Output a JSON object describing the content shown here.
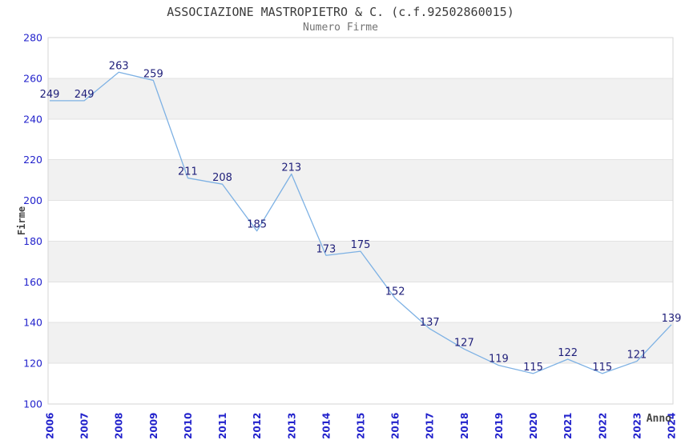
{
  "chart_data": {
    "type": "line",
    "title": "ASSOCIAZIONE MASTROPIETRO & C. (c.f.92502860015)",
    "subtitle": "Numero Firme",
    "xlabel": "Anno",
    "ylabel": "Firme",
    "categories": [
      "2006",
      "2007",
      "2008",
      "2009",
      "2010",
      "2011",
      "2012",
      "2013",
      "2014",
      "2015",
      "2016",
      "2017",
      "2018",
      "2019",
      "2020",
      "2021",
      "2022",
      "2023",
      "2024"
    ],
    "values": [
      249,
      249,
      263,
      259,
      211,
      208,
      185,
      213,
      173,
      175,
      152,
      137,
      127,
      119,
      115,
      122,
      115,
      121,
      139
    ],
    "ylim": [
      100,
      280
    ],
    "ytick_step": 20,
    "yticks": [
      100,
      120,
      140,
      160,
      180,
      200,
      220,
      240,
      260,
      280
    ],
    "grid": true,
    "banded_rows": true,
    "legend_position": "none",
    "colors": {
      "line": "#7db1e4",
      "data_label": "#1f1f7a",
      "tick_label": "#2222cc",
      "band": "#f1f1f1",
      "gridline": "#e2e2e2",
      "plot_border": "#d6d6d6",
      "title": "#3b3b3b",
      "subtitle": "#737373",
      "axis_title": "#444444",
      "background": "#ffffff"
    }
  }
}
